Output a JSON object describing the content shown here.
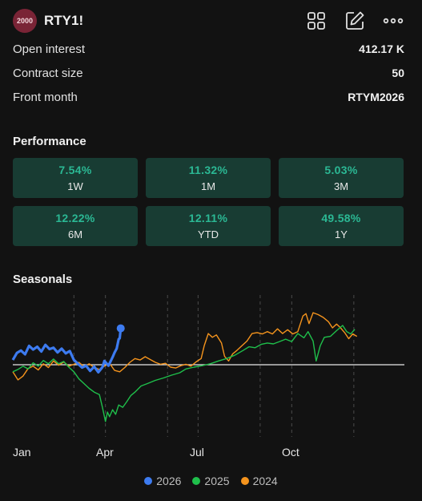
{
  "header": {
    "avatar_text": "2000",
    "symbol": "RTY1!"
  },
  "icons": [
    "grid-icon",
    "edit-icon",
    "more-icon"
  ],
  "stats": [
    {
      "label": "Open interest",
      "value": "412.17 K"
    },
    {
      "label": "Contract size",
      "value": "50"
    },
    {
      "label": "Front month",
      "value": "RTYM2026"
    }
  ],
  "performance": {
    "title": "Performance",
    "items": [
      {
        "value": "7.54%",
        "period": "1W"
      },
      {
        "value": "11.32%",
        "period": "1M"
      },
      {
        "value": "5.03%",
        "period": "3M"
      },
      {
        "value": "12.22%",
        "period": "6M"
      },
      {
        "value": "12.11%",
        "period": "YTD"
      },
      {
        "value": "49.58%",
        "period": "1Y"
      }
    ]
  },
  "seasonals": {
    "title": "Seasonals",
    "months": [
      "Jan",
      "Apr",
      "Jul",
      "Oct"
    ],
    "legend": [
      {
        "year": "2026",
        "color": "#3d7bf0"
      },
      {
        "year": "2025",
        "color": "#1fbf4b"
      },
      {
        "year": "2024",
        "color": "#f5941d"
      }
    ]
  },
  "chart_data": {
    "type": "line",
    "x_labels": [
      "Jan",
      "Apr",
      "Jul",
      "Oct"
    ],
    "x_range": [
      0,
      365
    ],
    "y_range": [
      -14,
      14
    ],
    "baseline": 0,
    "series": [
      {
        "name": "2026",
        "color": "#3d7bf0",
        "points": [
          [
            0,
            1.0
          ],
          [
            4,
            2.5
          ],
          [
            8,
            3.0
          ],
          [
            12,
            2.2
          ],
          [
            16,
            4.0
          ],
          [
            20,
            3.2
          ],
          [
            24,
            3.8
          ],
          [
            28,
            2.8
          ],
          [
            32,
            4.2
          ],
          [
            36,
            3.3
          ],
          [
            40,
            3.6
          ],
          [
            44,
            2.6
          ],
          [
            48,
            3.4
          ],
          [
            52,
            2.4
          ],
          [
            56,
            2.9
          ],
          [
            60,
            1.0
          ],
          [
            64,
            0.2
          ],
          [
            68,
            -0.6
          ],
          [
            72,
            -0.2
          ],
          [
            76,
            -1.3
          ],
          [
            80,
            -0.4
          ],
          [
            84,
            -1.6
          ],
          [
            88,
            -0.5
          ],
          [
            90,
            0.8
          ],
          [
            94,
            -0.2
          ],
          [
            98,
            1.6
          ],
          [
            100,
            2.6
          ],
          [
            102,
            3.4
          ],
          [
            104,
            5.4
          ],
          [
            105,
            5.6
          ],
          [
            106,
            7.7
          ]
        ]
      },
      {
        "name": "2025",
        "color": "#1fbf4b",
        "points": [
          [
            0,
            -1.5
          ],
          [
            5,
            -1.0
          ],
          [
            10,
            -0.3
          ],
          [
            15,
            -0.9
          ],
          [
            20,
            0.4
          ],
          [
            25,
            -0.3
          ],
          [
            30,
            0.9
          ],
          [
            35,
            0.2
          ],
          [
            40,
            1.2
          ],
          [
            45,
            0.2
          ],
          [
            50,
            0.7
          ],
          [
            55,
            -0.5
          ],
          [
            60,
            -1.5
          ],
          [
            65,
            -3.0
          ],
          [
            70,
            -4.0
          ],
          [
            75,
            -5.0
          ],
          [
            80,
            -5.8
          ],
          [
            85,
            -6.3
          ],
          [
            88,
            -9.0
          ],
          [
            91,
            -12.0
          ],
          [
            93,
            -10.0
          ],
          [
            95,
            -11.0
          ],
          [
            98,
            -9.5
          ],
          [
            101,
            -10.5
          ],
          [
            104,
            -8.5
          ],
          [
            108,
            -9.0
          ],
          [
            112,
            -7.8
          ],
          [
            116,
            -6.5
          ],
          [
            120,
            -5.8
          ],
          [
            126,
            -4.5
          ],
          [
            132,
            -4.0
          ],
          [
            140,
            -3.3
          ],
          [
            148,
            -2.8
          ],
          [
            156,
            -2.2
          ],
          [
            164,
            -1.7
          ],
          [
            170,
            -0.9
          ],
          [
            178,
            -0.5
          ],
          [
            186,
            -0.2
          ],
          [
            194,
            0.2
          ],
          [
            202,
            0.8
          ],
          [
            210,
            1.3
          ],
          [
            218,
            2.0
          ],
          [
            226,
            3.0
          ],
          [
            232,
            3.8
          ],
          [
            238,
            3.6
          ],
          [
            244,
            4.3
          ],
          [
            250,
            4.6
          ],
          [
            256,
            4.4
          ],
          [
            262,
            4.9
          ],
          [
            268,
            5.4
          ],
          [
            274,
            4.9
          ],
          [
            280,
            6.6
          ],
          [
            286,
            5.7
          ],
          [
            290,
            7.0
          ],
          [
            295,
            5.0
          ],
          [
            298,
            0.8
          ],
          [
            302,
            4.0
          ],
          [
            306,
            5.8
          ],
          [
            312,
            6.0
          ],
          [
            318,
            7.2
          ],
          [
            324,
            8.3
          ],
          [
            328,
            7.0
          ],
          [
            332,
            6.5
          ],
          [
            336,
            7.5
          ]
        ]
      },
      {
        "name": "2024",
        "color": "#f5941d",
        "points": [
          [
            0,
            -1.5
          ],
          [
            5,
            -3.2
          ],
          [
            10,
            -2.4
          ],
          [
            15,
            -0.8
          ],
          [
            20,
            -0.3
          ],
          [
            25,
            -1.1
          ],
          [
            30,
            0.2
          ],
          [
            35,
            -0.6
          ],
          [
            40,
            0.8
          ],
          [
            45,
            -0.1
          ],
          [
            50,
            0.6
          ],
          [
            55,
            -0.3
          ],
          [
            60,
            0.1
          ],
          [
            65,
            0.5
          ],
          [
            70,
            -0.4
          ],
          [
            75,
            0.2
          ],
          [
            80,
            -0.6
          ],
          [
            85,
            -1.0
          ],
          [
            90,
            -0.3
          ],
          [
            95,
            0.3
          ],
          [
            100,
            -1.2
          ],
          [
            105,
            -1.5
          ],
          [
            110,
            -0.6
          ],
          [
            115,
            0.5
          ],
          [
            120,
            1.3
          ],
          [
            125,
            1.0
          ],
          [
            130,
            1.7
          ],
          [
            135,
            1.1
          ],
          [
            140,
            0.5
          ],
          [
            145,
            0.1
          ],
          [
            150,
            0.3
          ],
          [
            155,
            -0.5
          ],
          [
            160,
            -0.7
          ],
          [
            165,
            -0.2
          ],
          [
            170,
            0.1
          ],
          [
            175,
            -0.3
          ],
          [
            180,
            0.6
          ],
          [
            185,
            1.3
          ],
          [
            188,
            4.0
          ],
          [
            192,
            6.6
          ],
          [
            196,
            5.8
          ],
          [
            200,
            6.3
          ],
          [
            205,
            4.6
          ],
          [
            208,
            1.8
          ],
          [
            212,
            0.8
          ],
          [
            216,
            2.3
          ],
          [
            220,
            3.0
          ],
          [
            225,
            4.0
          ],
          [
            230,
            5.0
          ],
          [
            235,
            6.6
          ],
          [
            240,
            6.8
          ],
          [
            245,
            6.5
          ],
          [
            250,
            7.0
          ],
          [
            255,
            6.5
          ],
          [
            260,
            7.6
          ],
          [
            265,
            6.6
          ],
          [
            270,
            7.4
          ],
          [
            275,
            6.5
          ],
          [
            280,
            7.0
          ],
          [
            285,
            10.3
          ],
          [
            288,
            10.8
          ],
          [
            291,
            8.7
          ],
          [
            295,
            11.0
          ],
          [
            300,
            10.6
          ],
          [
            305,
            10.0
          ],
          [
            310,
            9.1
          ],
          [
            314,
            7.8
          ],
          [
            318,
            8.6
          ],
          [
            322,
            7.8
          ],
          [
            326,
            6.8
          ],
          [
            330,
            5.5
          ],
          [
            334,
            6.5
          ],
          [
            338,
            6.0
          ]
        ]
      }
    ]
  }
}
